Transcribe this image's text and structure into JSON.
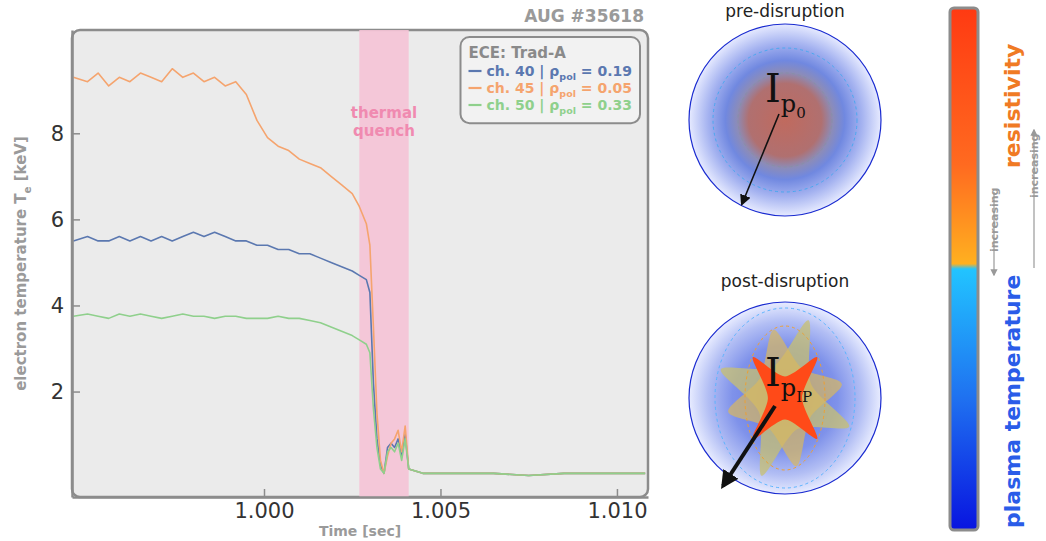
{
  "chart_data": {
    "type": "line",
    "title": "AUG #35618",
    "xlabel": "Time [sec]",
    "ylabel": "electron temperature Te [keV]",
    "legend_title": "ECE: Trad-A",
    "legend": "upper right",
    "grid": false,
    "x": [
      0.9946,
      0.995,
      0.9953,
      0.9956,
      0.9959,
      0.9962,
      0.9965,
      0.9968,
      0.9971,
      0.9974,
      0.9977,
      0.998,
      0.9983,
      0.9986,
      0.9989,
      0.9992,
      0.9995,
      0.9998,
      1.0001,
      1.0004,
      1.0007,
      1.001,
      1.0013,
      1.0016,
      1.0019,
      1.0022,
      1.0025,
      1.0027,
      1.0029,
      1.003,
      1.0031,
      1.0032,
      1.0033,
      1.0034,
      1.0035,
      1.0036,
      1.0037,
      1.0038,
      1.0039,
      1.004,
      1.0041,
      1.0045,
      1.0055,
      1.0065,
      1.0075,
      1.0085,
      1.0095,
      1.0108
    ],
    "series": [
      {
        "name": "ch. 40 | ρpol = 0.19",
        "color": "#5b78b0",
        "values": [
          5.5,
          5.6,
          5.5,
          5.5,
          5.6,
          5.5,
          5.6,
          5.5,
          5.6,
          5.5,
          5.6,
          5.7,
          5.6,
          5.7,
          5.6,
          5.5,
          5.5,
          5.4,
          5.4,
          5.3,
          5.3,
          5.2,
          5.2,
          5.1,
          5.0,
          4.9,
          4.8,
          4.7,
          4.6,
          4.3,
          2.2,
          0.9,
          0.3,
          0.1,
          0.7,
          0.8,
          0.7,
          0.9,
          0.5,
          1.0,
          0.2,
          0.1,
          0.1,
          0.1,
          0.05,
          0.1,
          0.1,
          0.1
        ]
      },
      {
        "name": "ch. 45 | ρpol = 0.05",
        "color": "#f5a46e",
        "values": [
          9.3,
          9.2,
          9.4,
          9.1,
          9.3,
          9.2,
          9.4,
          9.3,
          9.2,
          9.5,
          9.3,
          9.4,
          9.2,
          9.3,
          9.1,
          9.2,
          8.9,
          8.3,
          7.9,
          7.7,
          7.6,
          7.4,
          7.3,
          7.2,
          7.0,
          6.8,
          6.6,
          6.3,
          5.9,
          5.4,
          3.5,
          1.5,
          0.4,
          0.1,
          0.5,
          0.8,
          0.9,
          1.1,
          0.6,
          1.2,
          0.2,
          0.1,
          0.1,
          0.1,
          0.05,
          0.1,
          0.1,
          0.1
        ]
      },
      {
        "name": "ch. 50 | ρpol = 0.33",
        "color": "#8fd08c",
        "values": [
          3.75,
          3.8,
          3.75,
          3.7,
          3.8,
          3.75,
          3.8,
          3.75,
          3.7,
          3.75,
          3.8,
          3.75,
          3.75,
          3.7,
          3.75,
          3.75,
          3.7,
          3.7,
          3.7,
          3.75,
          3.7,
          3.7,
          3.65,
          3.6,
          3.5,
          3.4,
          3.3,
          3.2,
          3.1,
          2.9,
          1.6,
          0.7,
          0.2,
          0.1,
          0.6,
          0.7,
          0.6,
          0.8,
          0.4,
          0.9,
          0.2,
          0.1,
          0.1,
          0.1,
          0.05,
          0.1,
          0.1,
          0.1
        ]
      }
    ],
    "xlim": [
      0.99456,
      1.01088
    ],
    "xticks": [
      {
        "value": 1,
        "label": "1.000"
      },
      1.005,
      {
        "value": 1.01,
        "label": "1.010"
      }
    ],
    "ylim": [
      -0.45,
      10.4
    ],
    "yticks": [
      2,
      4,
      6,
      8
    ],
    "bands": [
      {
        "label": "thermal quench",
        "from": 1.0027,
        "to": 1.0041
      }
    ]
  },
  "diagram": {
    "panels": [
      {
        "title": "pre-disruption",
        "current": {
          "symbol": "I",
          "sub": "p",
          "subsub": "0"
        }
      },
      {
        "title": "post-disruption",
        "current": {
          "symbol": "I",
          "sub": "p",
          "subsub": "IP"
        }
      }
    ],
    "colorbar": {
      "labels": [
        {
          "text": "resistivity",
          "trend": "increasing"
        },
        {
          "text": "plasma temperature",
          "trend": "increasing"
        }
      ]
    }
  }
}
